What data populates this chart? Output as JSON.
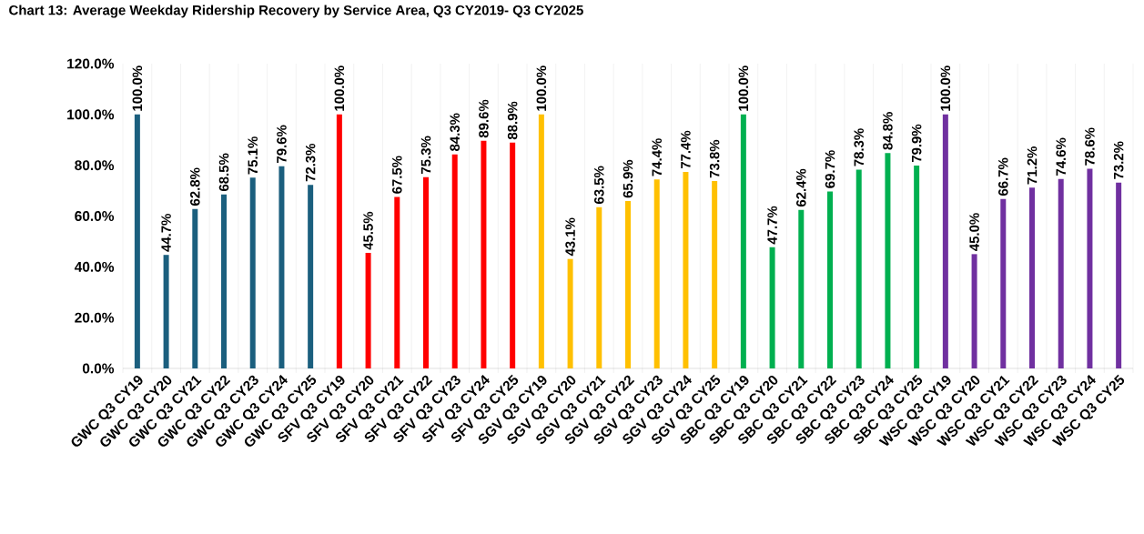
{
  "chart_data": {
    "type": "bar",
    "title": "Chart 13: Average Weekday Ridership Recovery by Service Area, Q3 CY2019- Q3 CY2025",
    "categories": [
      "GWC Q3 CY19",
      "GWC Q3 CY20",
      "GWC Q3 CY21",
      "GWC Q3 CY22",
      "GWC Q3 CY23",
      "GWC Q3 CY24",
      "GWC Q3 CY25",
      "SFV Q3 CY19",
      "SFV Q3 CY20",
      "SFV Q3 CY21",
      "SFV Q3 CY22",
      "SFV Q3 CY23",
      "SFV Q3 CY24",
      "SFV Q3 CY25",
      "SGV Q3 CY19",
      "SGV Q3 CY20",
      "SGV Q3 CY21",
      "SGV Q3 CY22",
      "SGV Q3 CY23",
      "SGV Q3 CY24",
      "SGV Q3 CY25",
      "SBC Q3 CY19",
      "SBC Q3 CY20",
      "SBC Q3 CY21",
      "SBC Q3 CY22",
      "SBC Q3 CY23",
      "SBC Q3 CY24",
      "SBC Q3 CY25",
      "WSC Q3 CY19",
      "WSC Q3 CY20",
      "WSC Q3 CY21",
      "WSC Q3 CY22",
      "WSC Q3 CY23",
      "WSC Q3 CY24",
      "WSC Q3 CY25"
    ],
    "values": [
      100.0,
      44.7,
      62.8,
      68.5,
      75.1,
      79.6,
      72.3,
      100.0,
      45.5,
      67.5,
      75.3,
      84.3,
      89.6,
      88.9,
      100.0,
      43.1,
      63.5,
      65.9,
      74.4,
      77.4,
      73.8,
      100.0,
      47.7,
      62.4,
      69.7,
      78.3,
      84.8,
      79.9,
      100.0,
      45.0,
      66.7,
      71.2,
      74.6,
      78.6,
      73.2
    ],
    "value_labels": [
      "100.0%",
      "44.7%",
      "62.8%",
      "68.5%",
      "75.1%",
      "79.6%",
      "72.3%",
      "100.0%",
      "45.5%",
      "67.5%",
      "75.3%",
      "84.3%",
      "89.6%",
      "88.9%",
      "100.0%",
      "43.1%",
      "63.5%",
      "65.9%",
      "74.4%",
      "77.4%",
      "73.8%",
      "100.0%",
      "47.7%",
      "62.4%",
      "69.7%",
      "78.3%",
      "84.8%",
      "79.9%",
      "100.0%",
      "45.0%",
      "66.7%",
      "71.2%",
      "74.6%",
      "78.6%",
      "73.2%"
    ],
    "colors": [
      "#1b5f7e",
      "#1b5f7e",
      "#1b5f7e",
      "#1b5f7e",
      "#1b5f7e",
      "#1b5f7e",
      "#1b5f7e",
      "#ff0000",
      "#ff0000",
      "#ff0000",
      "#ff0000",
      "#ff0000",
      "#ff0000",
      "#ff0000",
      "#ffc000",
      "#ffc000",
      "#ffc000",
      "#ffc000",
      "#ffc000",
      "#ffc000",
      "#ffc000",
      "#00b050",
      "#00b050",
      "#00b050",
      "#00b050",
      "#00b050",
      "#00b050",
      "#00b050",
      "#7030a0",
      "#7030a0",
      "#7030a0",
      "#7030a0",
      "#7030a0",
      "#7030a0",
      "#7030a0"
    ],
    "ylim": [
      0,
      120
    ],
    "yticks": [
      {
        "value": 0,
        "label": "0.0%"
      },
      {
        "value": 20,
        "label": "20.0%"
      },
      {
        "value": 40,
        "label": "40.0%"
      },
      {
        "value": 60,
        "label": "60.0%"
      },
      {
        "value": 80,
        "label": "80.0%"
      },
      {
        "value": 100,
        "label": "100.0%"
      },
      {
        "value": 120,
        "label": "120.0%"
      }
    ],
    "grid": "x"
  }
}
